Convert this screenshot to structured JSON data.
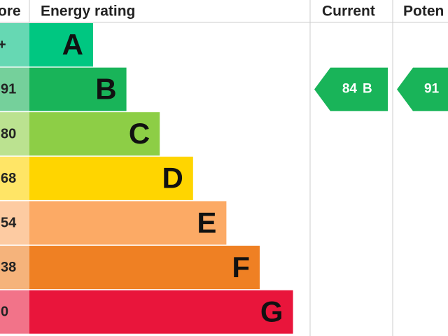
{
  "header": {
    "score": "ore",
    "rating": "Energy rating",
    "current": "Current",
    "potential": "Poten"
  },
  "bands": [
    {
      "score": "+",
      "letter": "A",
      "color": "#00c781",
      "light": "#66d8b3"
    },
    {
      "score": "91",
      "letter": "B",
      "color": "#19b459",
      "light": "#75d09b"
    },
    {
      "score": "80",
      "letter": "C",
      "color": "#8dce46",
      "light": "#bbe290"
    },
    {
      "score": "68",
      "letter": "D",
      "color": "#ffd500",
      "light": "#ffe566"
    },
    {
      "score": "54",
      "letter": "E",
      "color": "#fcaa65",
      "light": "#fdcba2"
    },
    {
      "score": "38",
      "letter": "F",
      "color": "#ef8023",
      "light": "#f5b37b"
    },
    {
      "score": "0",
      "letter": "G",
      "color": "#e9153b",
      "light": "#f27389"
    }
  ],
  "current": {
    "value": "84",
    "letter": "B",
    "color": "#19b459"
  },
  "potential": {
    "value": "91",
    "color": "#19b459"
  }
}
